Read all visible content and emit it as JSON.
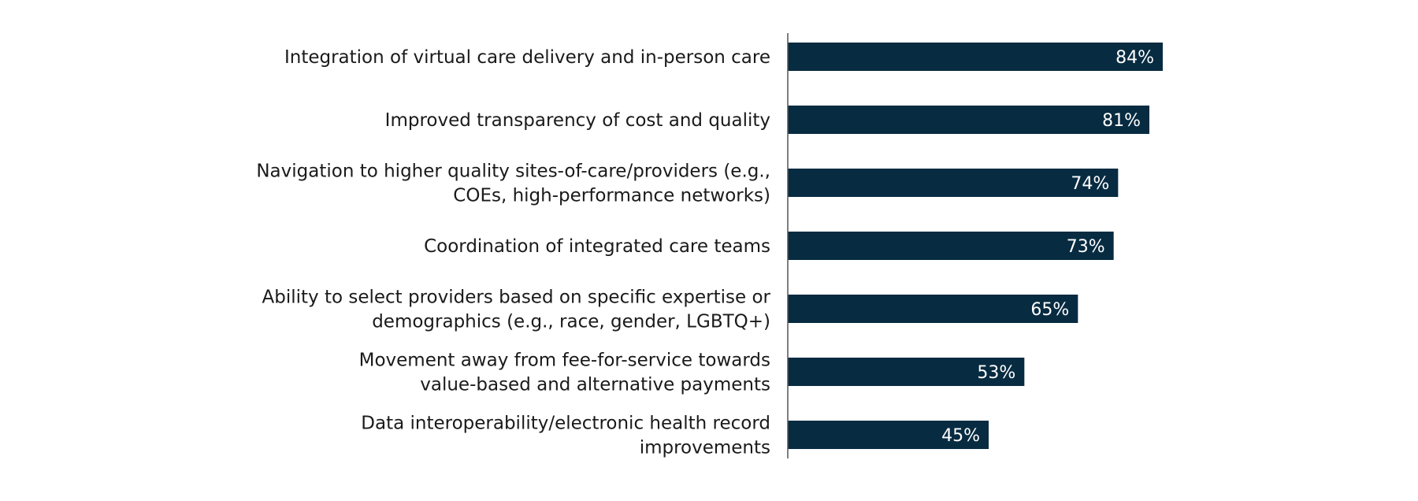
{
  "chart_data": {
    "type": "bar",
    "orientation": "horizontal",
    "categories": [
      "Integration of virtual care delivery and in-person care",
      "Improved transparency of cost and quality",
      "Navigation to higher quality sites-of-care/providers (e.g., COEs, high-performance networks)",
      "Coordination of integrated care teams",
      "Ability to select providers based on specific expertise or demographics (e.g., race, gender, LGBTQ+)",
      "Movement away from fee-for-service towards value-based and alternative payments",
      "Data interoperability/electronic health record improvements"
    ],
    "category_lines": [
      [
        "Integration of virtual care delivery and in-person care"
      ],
      [
        "Improved transparency of cost and quality"
      ],
      [
        "Navigation to higher quality sites-of-care/providers (e.g.,",
        "COEs, high-performance networks)"
      ],
      [
        "Coordination of integrated care teams"
      ],
      [
        "Ability to select providers based on specific expertise or",
        "demographics (e.g., race, gender, LGBTQ+)"
      ],
      [
        "Movement away from fee-for-service towards",
        "value-based and alternative payments"
      ],
      [
        "Data interoperability/electronic health record",
        "improvements"
      ]
    ],
    "values": [
      84,
      81,
      74,
      73,
      65,
      53,
      45
    ],
    "value_labels": [
      "84%",
      "81%",
      "74%",
      "73%",
      "65%",
      "53%",
      "45%"
    ],
    "unit": "%",
    "xlim": [
      0,
      100
    ],
    "grid": false,
    "legend": "none",
    "bar_color": "#072b41",
    "axis_color": "#555555",
    "value_label_color": "#ffffff"
  }
}
